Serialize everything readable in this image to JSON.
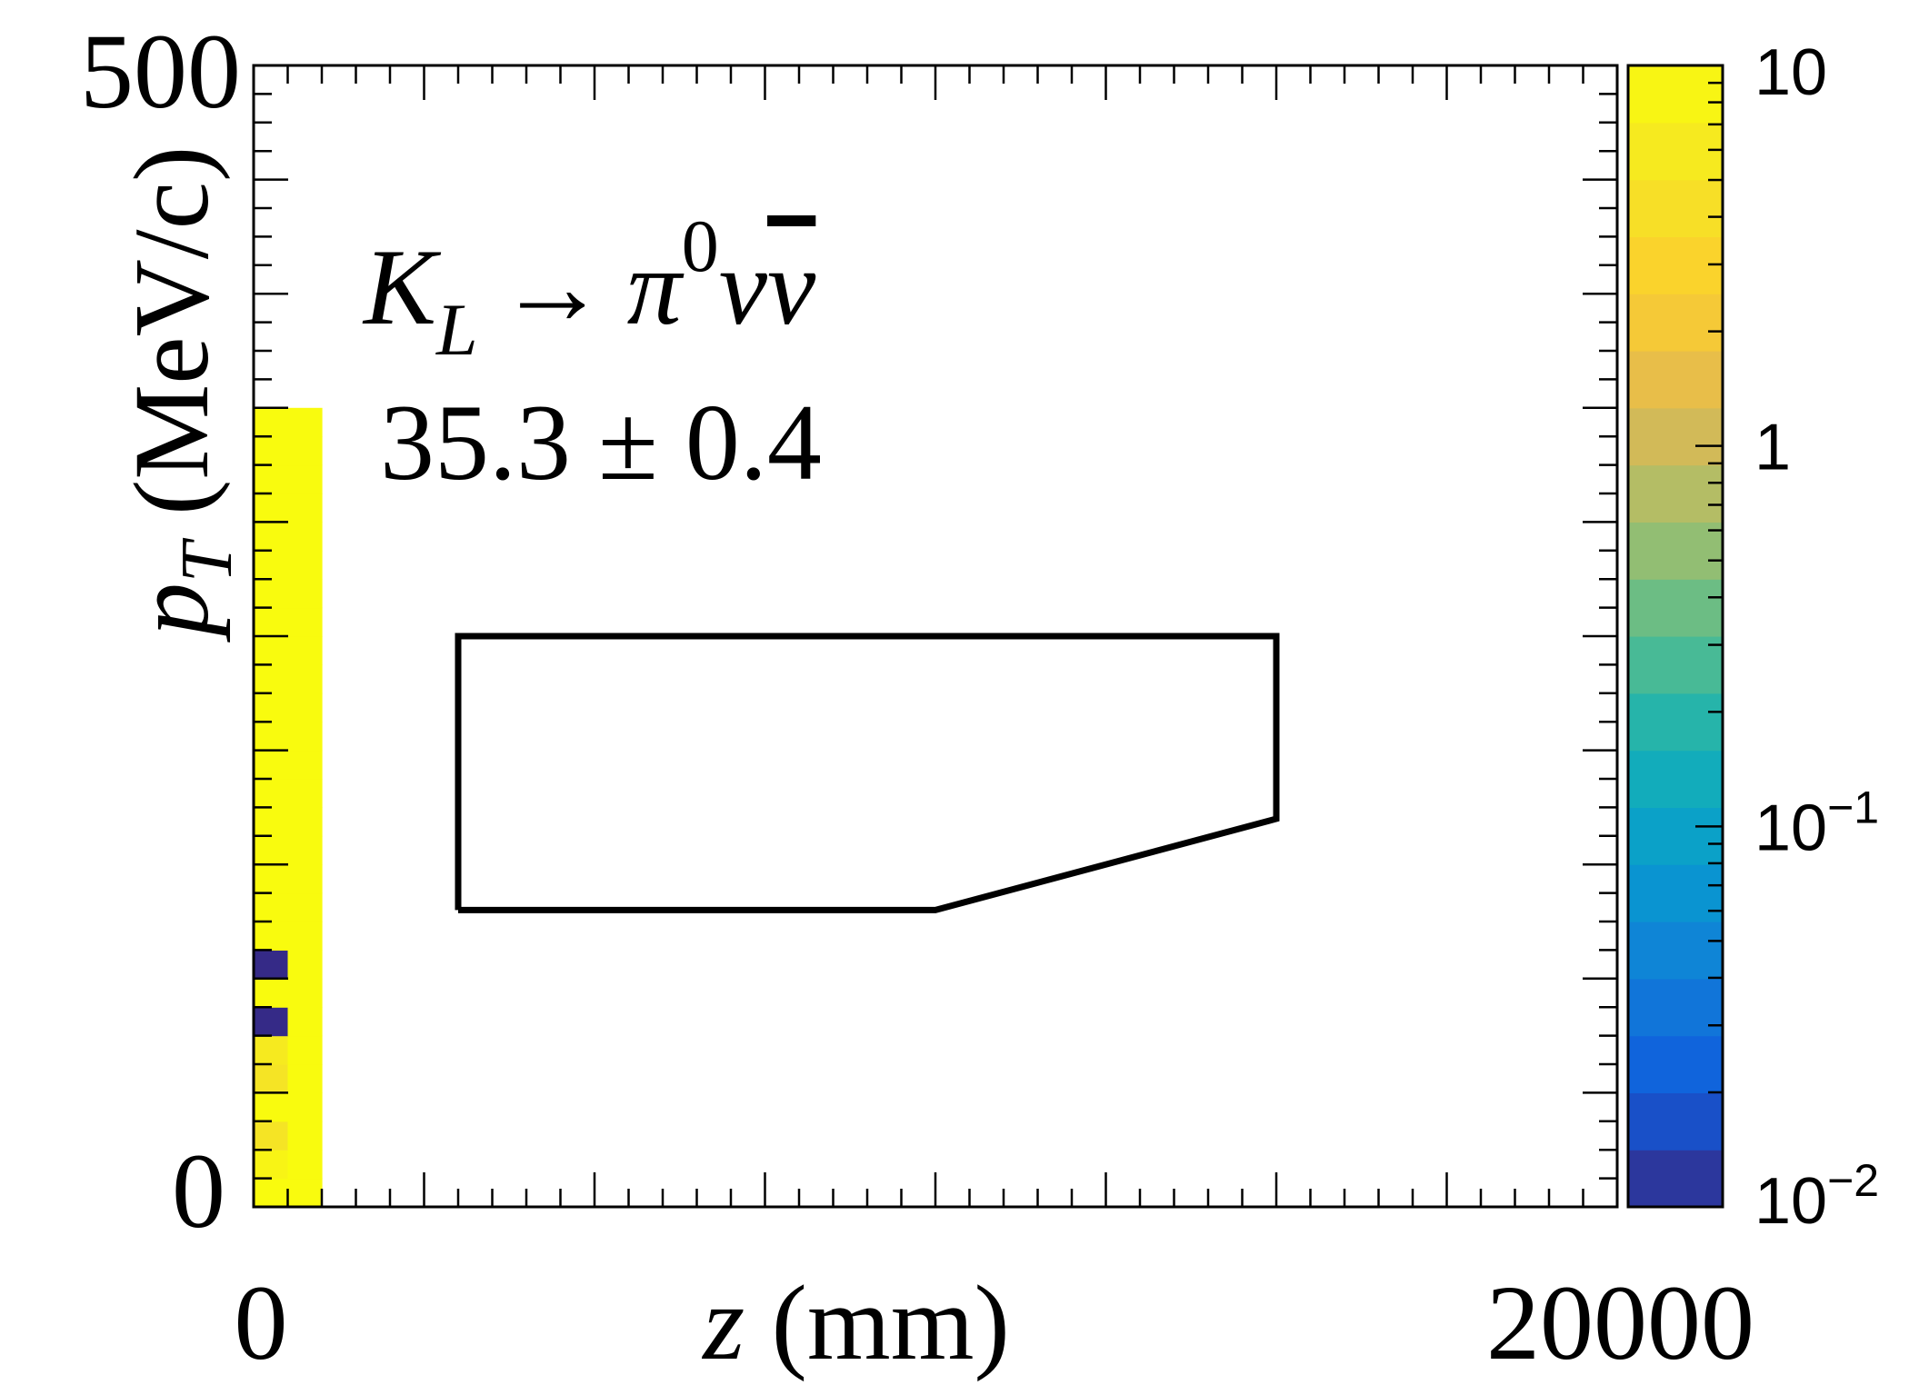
{
  "chart_data": {
    "type": "heatmap",
    "title": "",
    "xlabel": "z (mm)",
    "ylabel": "p_T (MeV/c)",
    "xlim": [
      0,
      20000
    ],
    "ylim": [
      0,
      500
    ],
    "x_tick_labels": [
      "0",
      "20000"
    ],
    "y_tick_labels": [
      "0",
      "500"
    ],
    "z_scale": "log",
    "zlim": [
      0.01,
      10
    ],
    "colorbar_tick_labels": [
      {
        "mantissa": "10",
        "exponent": "",
        "value": 10
      },
      {
        "mantissa": "1",
        "exponent": "",
        "value": 1
      },
      {
        "mantissa": "10",
        "exponent": "−1",
        "value": 0.1
      },
      {
        "mantissa": "10",
        "exponent": "−2",
        "value": 0.01
      }
    ],
    "annotation": {
      "process": {
        "base": "K",
        "sub": "L",
        "arrow": "→",
        "pi": "π",
        "pi_sup": "0",
        "nu": "ν",
        "nubar": "ν"
      },
      "yield": "35.3 ± 0.4"
    },
    "signal_region": [
      [
        3000,
        130
      ],
      [
        3000,
        250
      ],
      [
        15000,
        250
      ],
      [
        15000,
        170
      ],
      [
        10000,
        130
      ],
      [
        3000,
        130
      ]
    ],
    "x_bins": {
      "start": 0,
      "width": 500,
      "count": 40
    },
    "y_bins": {
      "start": 0,
      "width": 12.5,
      "count": 40
    },
    "cells": [
      [
        [
          0,
          11
        ],
        [
          1,
          27
        ]
      ],
      [
        [
          0,
          8
        ],
        [
          1,
          27
        ]
      ],
      [
        [
          0,
          5
        ],
        [
          1,
          27
        ]
      ],
      [
        [
          0,
          19
        ],
        [
          1,
          27
        ]
      ],
      [
        [
          0,
          5
        ],
        [
          1,
          27
        ]
      ],
      [
        [
          0,
          6
        ],
        [
          1,
          27
        ]
      ],
      [
        [
          0,
          0
        ],
        [
          1,
          27
        ]
      ],
      [
        [
          0,
          18
        ],
        [
          1,
          27
        ]
      ],
      [
        [
          0,
          0
        ],
        [
          1,
          31
        ]
      ],
      [
        [
          0,
          11
        ],
        [
          1,
          28
        ]
      ],
      [
        [
          0,
          11
        ],
        [
          1,
          31
        ]
      ],
      [
        [
          0,
          13
        ],
        [
          1,
          29
        ]
      ],
      [
        [
          0,
          20
        ],
        [
          1,
          29
        ]
      ],
      [
        [
          0,
          35
        ],
        [
          1,
          28
        ]
      ],
      [
        [
          0,
          42
        ],
        [
          1,
          29
        ]
      ],
      [
        [
          0,
          49
        ],
        [
          1,
          31
        ]
      ],
      [
        [
          0,
          56
        ],
        [
          1,
          29
        ]
      ],
      [
        [
          0,
          63
        ],
        [
          1,
          28
        ]
      ],
      [
        [
          0,
          70
        ],
        [
          1,
          24
        ]
      ],
      [
        [
          0,
          77
        ],
        [
          1,
          21
        ]
      ],
      [
        [
          0,
          84
        ],
        [
          1,
          21
        ]
      ],
      [
        [
          0,
          91
        ],
        [
          1,
          23
        ]
      ],
      [
        [
          0,
          98
        ],
        [
          1,
          31
        ]
      ],
      [
        [
          0,
          105
        ],
        [
          1,
          31
        ]
      ],
      [
        [
          0,
          112
        ],
        [
          1,
          26
        ]
      ],
      [
        [
          0,
          119
        ],
        [
          1,
          31
        ]
      ],
      [
        [
          0,
          126
        ],
        [
          1,
          31
        ]
      ],
      [
        [
          0,
          133
        ],
        [
          1,
          29
        ]
      ]
    ]
  }
}
